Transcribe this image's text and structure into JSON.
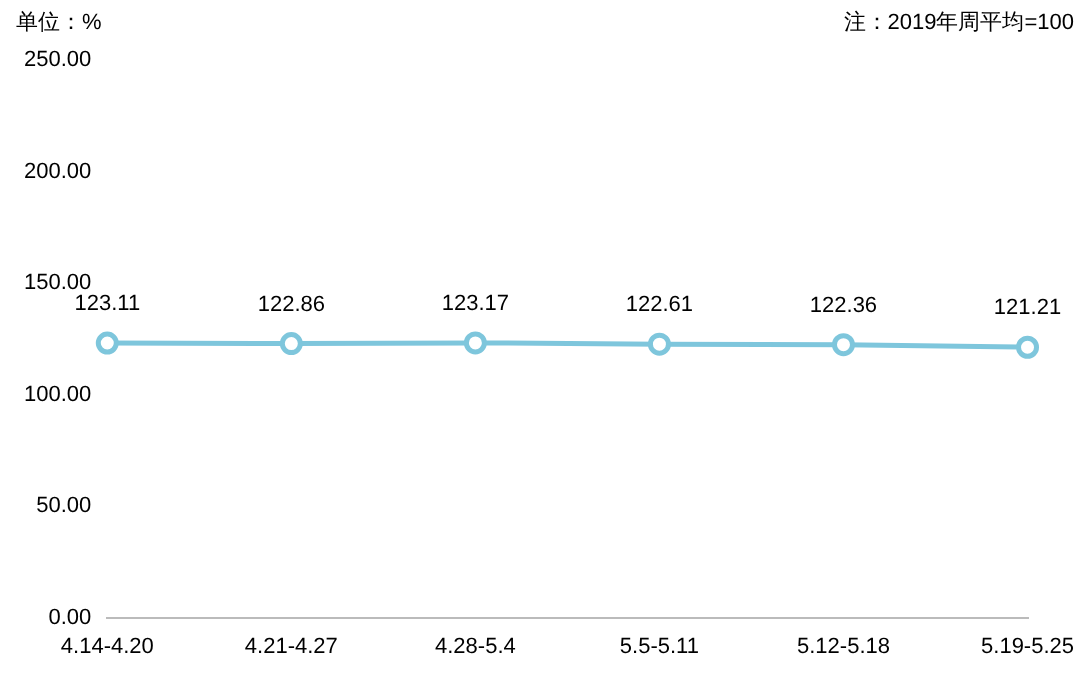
{
  "chart_data": {
    "type": "line",
    "ylabel": "单位：%",
    "annotations": [
      "注：2019年周平均=100"
    ],
    "categories": [
      "4.14-4.20",
      "4.21-4.27",
      "4.28-5.4",
      "5.5-5.11",
      "5.12-5.18",
      "5.19-5.25"
    ],
    "series": [
      {
        "color": "#7ec6dc",
        "values": [
          123.11,
          122.86,
          123.17,
          122.61,
          122.36,
          121.21
        ]
      }
    ],
    "ylim": [
      0,
      250
    ],
    "yticks": [
      {
        "value": 0,
        "label": "0.00"
      },
      {
        "value": 50,
        "label": "50.00"
      },
      {
        "value": 100,
        "label": "100.00"
      },
      {
        "value": 150,
        "label": "150.00"
      },
      {
        "value": 200,
        "label": "200.00"
      },
      {
        "value": 250,
        "label": "250.00"
      }
    ],
    "grid": false,
    "legend": false,
    "marker": "circle",
    "line_style": "solid",
    "data_labels": true
  }
}
